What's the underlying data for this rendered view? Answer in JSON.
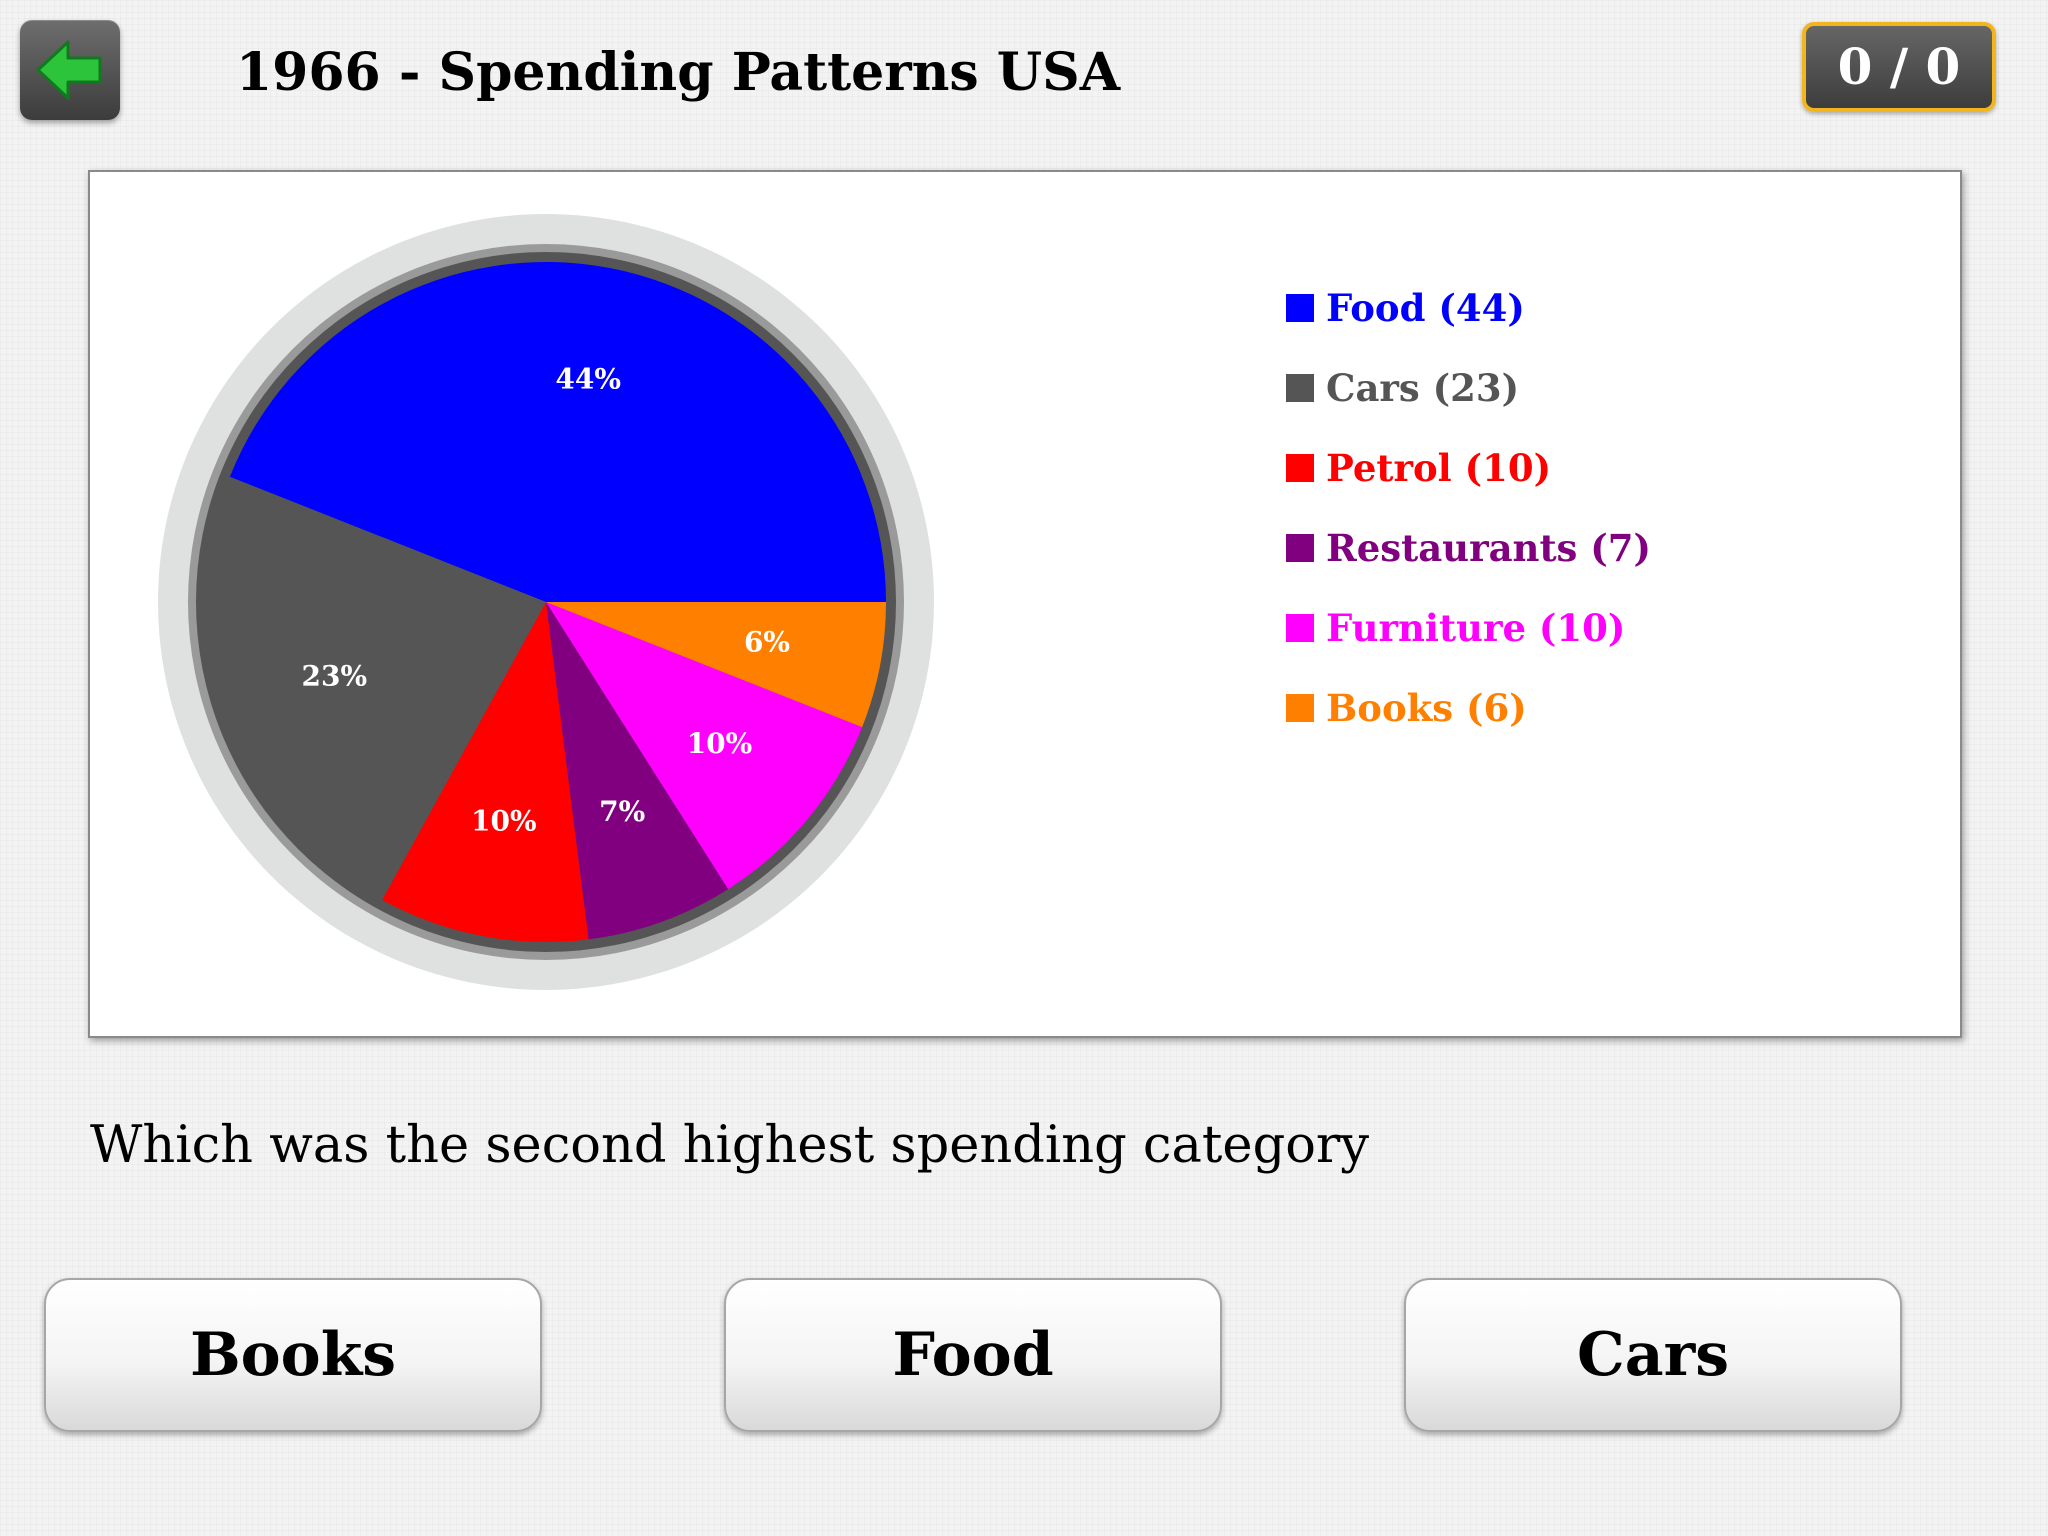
{
  "header": {
    "back_icon": "back-arrow-icon",
    "title": "1966 - Spending Patterns USA",
    "score": "0 / 0"
  },
  "chart_data": {
    "type": "pie",
    "categories": [
      "Food",
      "Cars",
      "Petrol",
      "Restaurants",
      "Furniture",
      "Books"
    ],
    "values": [
      44,
      23,
      10,
      7,
      10,
      6
    ],
    "slice_labels": [
      "44%",
      "23%",
      "10%",
      "7%",
      "10%",
      "6%"
    ],
    "legend_labels": [
      "Food (44)",
      "Cars (23)",
      "Petrol (10)",
      "Restaurants (7)",
      "Furniture (10)",
      "Books (6)"
    ],
    "colors": [
      "#0000ff",
      "#555555",
      "#ff0000",
      "#800080",
      "#ff00ff",
      "#ff8000"
    ],
    "legend_position": "right",
    "start_angle_deg": 0,
    "direction": "counterclockwise"
  },
  "question": "Which was the second highest spending category",
  "answers": [
    "Books",
    "Food",
    "Cars"
  ]
}
